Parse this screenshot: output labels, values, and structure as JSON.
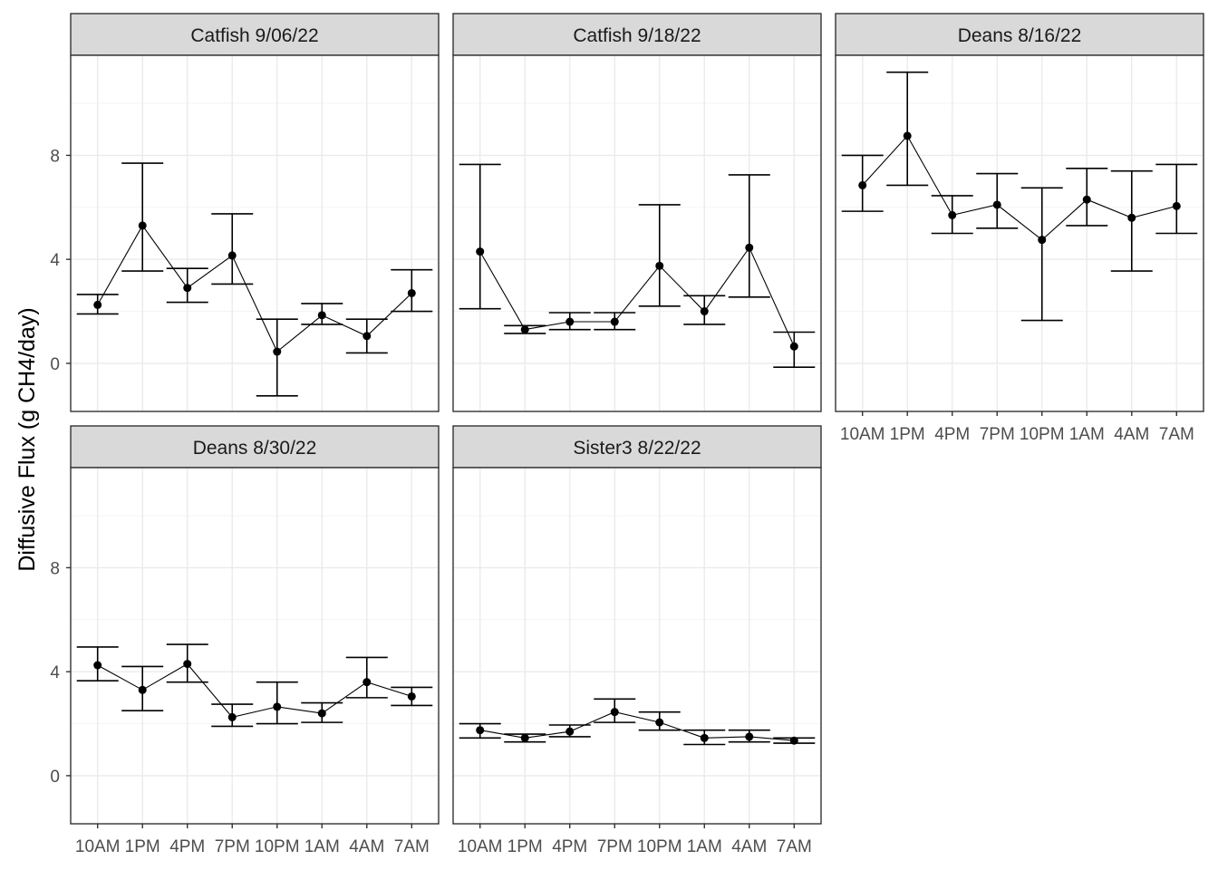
{
  "chart_data": {
    "type": "line",
    "layout": "facet_wrap",
    "ylabel": "Diffusive Flux (g CH4/day)",
    "xlabel": "",
    "x_categories": [
      "10AM",
      "1PM",
      "4PM",
      "7PM",
      "10PM",
      "1AM",
      "4AM",
      "7AM"
    ],
    "y_ticks": [
      0,
      4,
      8
    ],
    "ylim": [
      -1.85,
      11.85
    ],
    "grid": true,
    "error_bars": true,
    "panels": [
      {
        "title": "Catfish 9/06/22",
        "values": [
          2.25,
          5.3,
          2.9,
          4.15,
          0.45,
          1.85,
          1.05,
          2.7
        ],
        "lower": [
          1.9,
          3.55,
          2.35,
          3.05,
          -1.25,
          1.5,
          0.4,
          2.0
        ],
        "upper": [
          2.65,
          7.7,
          3.65,
          5.75,
          1.7,
          2.3,
          1.7,
          3.6
        ]
      },
      {
        "title": "Catfish 9/18/22",
        "values": [
          4.3,
          1.3,
          1.6,
          1.6,
          3.75,
          2.0,
          4.45,
          0.65
        ],
        "lower": [
          2.1,
          1.15,
          1.3,
          1.3,
          2.2,
          1.5,
          2.55,
          -0.15
        ],
        "upper": [
          7.65,
          1.45,
          1.95,
          1.95,
          6.1,
          2.6,
          7.25,
          1.2
        ]
      },
      {
        "title": "Deans 8/16/22",
        "values": [
          6.85,
          8.75,
          5.7,
          6.1,
          4.75,
          6.3,
          5.6,
          6.05
        ],
        "lower": [
          5.85,
          6.85,
          5.0,
          5.2,
          1.65,
          5.3,
          3.55,
          5.0
        ],
        "upper": [
          8.0,
          11.2,
          6.45,
          7.3,
          6.75,
          7.5,
          7.4,
          7.65
        ]
      },
      {
        "title": "Deans 8/30/22",
        "values": [
          4.25,
          3.3,
          4.3,
          2.25,
          2.65,
          2.4,
          3.6,
          3.05
        ],
        "lower": [
          3.65,
          2.5,
          3.6,
          1.9,
          2.0,
          2.05,
          3.0,
          2.7
        ],
        "upper": [
          4.95,
          4.2,
          5.05,
          2.75,
          3.6,
          2.8,
          4.55,
          3.4
        ]
      },
      {
        "title": "Sister3 8/22/22",
        "values": [
          1.75,
          1.45,
          1.7,
          2.45,
          2.05,
          1.45,
          1.5,
          1.35
        ],
        "lower": [
          1.45,
          1.3,
          1.5,
          2.05,
          1.75,
          1.2,
          1.3,
          1.25
        ],
        "upper": [
          2.0,
          1.6,
          1.95,
          2.95,
          2.45,
          1.75,
          1.75,
          1.45
        ]
      }
    ]
  }
}
